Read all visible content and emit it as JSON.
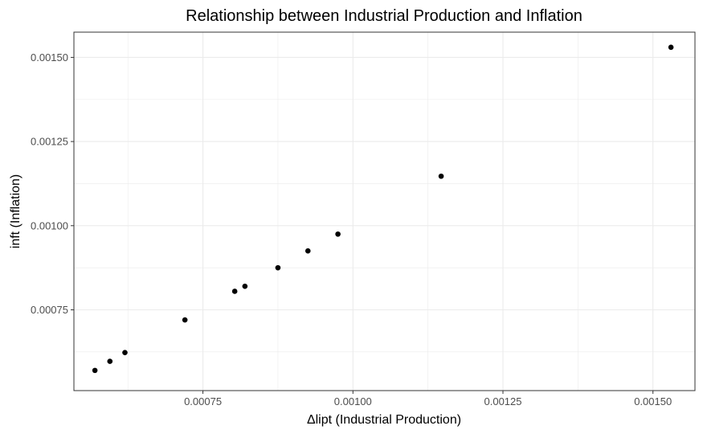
{
  "chart_data": {
    "type": "scatter",
    "title": "Relationship between Industrial Production and Inflation",
    "xlabel": "Δlipt (Industrial Production)",
    "ylabel": "inft (Inflation)",
    "xlim": [
      0.000535,
      0.00157
    ],
    "ylim": [
      0.00051,
      1.0
    ],
    "x_ticks": [
      {
        "value": 0.00075,
        "label": "0.00075"
      },
      {
        "value": 0.001,
        "label": "0.00100"
      },
      {
        "value": 0.00125,
        "label": "0.00125"
      },
      {
        "value": 0.0015,
        "label": "0.00150"
      }
    ],
    "y_ticks": [
      {
        "value": 0.00075,
        "label": "0.00075"
      },
      {
        "value": 0.001,
        "label": "0.00100"
      },
      {
        "value": 0.00125,
        "label": "0.00125"
      },
      {
        "value": 0.0015,
        "label": "0.00150"
      }
    ],
    "x_minor": [
      0.000625,
      0.000875,
      0.001125,
      0.001375
    ],
    "y_minor": [
      0.000625,
      0.000875,
      0.001125,
      0.001375
    ],
    "grid": true,
    "point_color": "#000000",
    "grid_color": "#ebebeb",
    "panel_border_color": "#333333",
    "points": [
      {
        "x": 0.00057,
        "y": 0.00057
      },
      {
        "x": 0.000595,
        "y": 0.000597
      },
      {
        "x": 0.00062,
        "y": 0.000623
      },
      {
        "x": 0.00072,
        "y": 0.00072
      },
      {
        "x": 0.000803,
        "y": 0.000805
      },
      {
        "x": 0.00082,
        "y": 0.00082
      },
      {
        "x": 0.000875,
        "y": 0.000875
      },
      {
        "x": 0.000925,
        "y": 0.000925
      },
      {
        "x": 0.000975,
        "y": 0.000975
      },
      {
        "x": 0.001147,
        "y": 0.001147
      },
      {
        "x": 0.00153,
        "y": 0.00153
      }
    ]
  }
}
